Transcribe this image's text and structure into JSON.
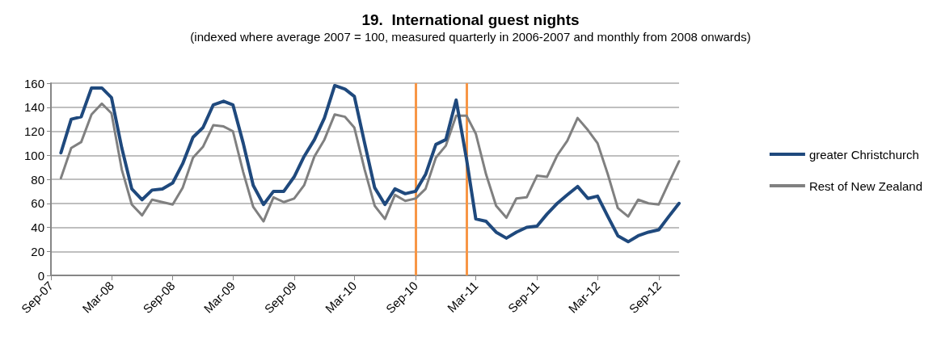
{
  "chart_data": {
    "type": "line",
    "title": "19.  International guest nights",
    "subtitle": "(indexed where average 2007 = 100, measured quarterly in 2006-2007 and monthly from 2008 onwards)",
    "x": [
      "2007-10",
      "2007-11",
      "2007-12",
      "2008-01",
      "2008-02",
      "2008-03",
      "2008-04",
      "2008-05",
      "2008-06",
      "2008-07",
      "2008-08",
      "2008-09",
      "2008-10",
      "2008-11",
      "2008-12",
      "2009-01",
      "2009-02",
      "2009-03",
      "2009-04",
      "2009-05",
      "2009-06",
      "2009-07",
      "2009-08",
      "2009-09",
      "2009-10",
      "2009-11",
      "2009-12",
      "2010-01",
      "2010-02",
      "2010-03",
      "2010-04",
      "2010-05",
      "2010-06",
      "2010-07",
      "2010-08",
      "2010-09",
      "2010-10",
      "2010-11",
      "2010-12",
      "2011-01",
      "2011-02",
      "2011-03",
      "2011-04",
      "2011-05",
      "2011-06",
      "2011-07",
      "2011-08",
      "2011-09",
      "2011-10",
      "2011-11",
      "2011-12",
      "2012-01",
      "2012-02",
      "2012-03",
      "2012-04",
      "2012-05",
      "2012-06",
      "2012-07",
      "2012-08",
      "2012-09",
      "2012-10",
      "2012-11"
    ],
    "series": [
      {
        "name": "greater Christchurch",
        "color": "#1f497d",
        "values": [
          102,
          130,
          132,
          156,
          156,
          148,
          106,
          72,
          63,
          71,
          72,
          77,
          93,
          115,
          123,
          142,
          145,
          142,
          110,
          75,
          59,
          70,
          70,
          82,
          99,
          113,
          131,
          158,
          155,
          149,
          110,
          73,
          59,
          72,
          68,
          70,
          84,
          109,
          113,
          146,
          97,
          47,
          45,
          36,
          31,
          36,
          40,
          41,
          51,
          60,
          67,
          74,
          64,
          66,
          49,
          33,
          28,
          33,
          36,
          38,
          49,
          60
        ]
      },
      {
        "name": "Rest of New Zealand",
        "color": "#808080",
        "values": [
          81,
          106,
          111,
          134,
          143,
          135,
          88,
          59,
          50,
          63,
          61,
          59,
          73,
          98,
          107,
          125,
          124,
          120,
          86,
          57,
          45,
          65,
          61,
          64,
          75,
          99,
          113,
          134,
          132,
          123,
          88,
          58,
          47,
          67,
          62,
          64,
          72,
          98,
          108,
          133,
          133,
          118,
          84,
          58,
          48,
          64,
          65,
          83,
          82,
          100,
          112,
          131,
          121,
          110,
          84,
          56,
          49,
          63,
          60,
          59,
          77,
          95
        ]
      }
    ],
    "xlim": [
      "2007-09",
      "2012-11"
    ],
    "xticks": [
      {
        "value": "2007-09",
        "label": "Sep-07"
      },
      {
        "value": "2008-03",
        "label": "Mar-08"
      },
      {
        "value": "2008-09",
        "label": "Sep-08"
      },
      {
        "value": "2009-03",
        "label": "Mar-09"
      },
      {
        "value": "2009-09",
        "label": "Sep-09"
      },
      {
        "value": "2010-03",
        "label": "Mar-10"
      },
      {
        "value": "2010-09",
        "label": "Sep-10"
      },
      {
        "value": "2011-03",
        "label": "Mar-11"
      },
      {
        "value": "2011-09",
        "label": "Sep-11"
      },
      {
        "value": "2012-03",
        "label": "Mar-12"
      },
      {
        "value": "2012-09",
        "label": "Sep-12"
      }
    ],
    "ylim": [
      0,
      160
    ],
    "yticks": [
      0,
      20,
      40,
      60,
      80,
      100,
      120,
      140,
      160
    ],
    "ref_lines": [
      {
        "axis": "x",
        "value": "2010-09",
        "color": "#f79646"
      },
      {
        "axis": "x",
        "value": "2011-02",
        "color": "#f79646"
      }
    ],
    "grid": "y",
    "legend": "right",
    "marker": "none",
    "line_style": "solid"
  }
}
